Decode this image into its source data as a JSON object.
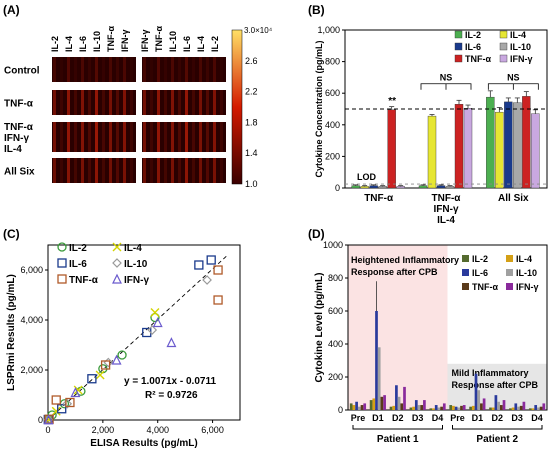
{
  "panels": {
    "A": {
      "label": "(A)"
    },
    "B": {
      "label": "(B)"
    },
    "C": {
      "label": "(C)"
    },
    "D": {
      "label": "(D)"
    }
  },
  "chart_data": [
    {
      "panel": "A",
      "type": "heatmap",
      "columns_left": [
        "IL-2",
        "IL-4",
        "IL-6",
        "IL-10",
        "TNF-α",
        "IFN-γ"
      ],
      "columns_right": [
        "IFN-γ",
        "TNF-α",
        "IL-10",
        "IL-6",
        "IL-4",
        "IL-2"
      ],
      "rows": [
        "Control",
        "TNF-α",
        "TNF-α\nIFN-γ\nIL-4",
        "All Six"
      ],
      "row_lines": [
        [
          "Control"
        ],
        [
          "TNF-α"
        ],
        [
          "TNF-α",
          "IFN-γ",
          "IL-4"
        ],
        [
          "All Six"
        ]
      ],
      "colorbar_max_label": "3.0×10⁴",
      "colorbar_ticks": [
        "2.6",
        "2.2",
        "1.8",
        "1.4",
        "1.0"
      ],
      "colorbar_range": [
        1.0,
        3.0
      ],
      "colors": {
        "low": "#3a0000",
        "mid": "#d41a00",
        "high": "#ffe066"
      }
    },
    {
      "panel": "B",
      "type": "bar",
      "ylabel": "Cytokine Concentration (pg/mL)",
      "ylim": [
        0,
        1000
      ],
      "yticks": [
        "0",
        "200",
        "400",
        "600",
        "800",
        "1,000"
      ],
      "ytick_values": [
        0,
        200,
        400,
        600,
        800,
        1000
      ],
      "groups": [
        "TNF-α",
        "TNF-α\nIFN-γ\nIL-4",
        "All Six"
      ],
      "group_lines": [
        [
          "TNF-α"
        ],
        [
          "TNF-α",
          "IFN-γ",
          "IL-4"
        ],
        [
          "All Six"
        ]
      ],
      "series": [
        {
          "name": "IL-2",
          "color": "#4caf50",
          "values": [
            15,
            15,
            575
          ],
          "errors": [
            5,
            5,
            40
          ]
        },
        {
          "name": "IL-4",
          "color": "#e6e633",
          "values": [
            10,
            455,
            480
          ],
          "errors": [
            5,
            10,
            30
          ]
        },
        {
          "name": "IL-6",
          "color": "#1a3a8c",
          "values": [
            15,
            15,
            545
          ],
          "errors": [
            5,
            5,
            25
          ]
        },
        {
          "name": "IL-10",
          "color": "#a8a8a8",
          "values": [
            10,
            10,
            540
          ],
          "errors": [
            5,
            5,
            30
          ]
        },
        {
          "name": "TNF-α",
          "color": "#cc2222",
          "values": [
            495,
            530,
            580
          ],
          "errors": [
            20,
            25,
            30
          ]
        },
        {
          "name": "IFN-γ",
          "color": "#c9a8e0",
          "values": [
            10,
            505,
            470
          ],
          "errors": [
            5,
            20,
            25
          ]
        }
      ],
      "reference_line": 500,
      "lod_line": 25,
      "annotations": {
        "lod": "LOD",
        "sig": "**",
        "ns1": "NS",
        "ns2": "NS"
      }
    },
    {
      "panel": "C",
      "type": "scatter",
      "xlabel": "ELISA Results (pg/mL)",
      "ylabel": "LSPRmi Results (pg/mL)",
      "xlim": [
        0,
        7000
      ],
      "ylim": [
        0,
        7000
      ],
      "xticks": [
        "0",
        "2,000",
        "4,000",
        "6,000"
      ],
      "xtick_values": [
        0,
        2000,
        4000,
        6000
      ],
      "yticks": [
        "0",
        "2,000",
        "4,000",
        "6,000"
      ],
      "ytick_values": [
        0,
        2000,
        4000,
        6000
      ],
      "equation": "y = 1.0071x - 0.0711",
      "r2": "R² = 0.9726",
      "fit": {
        "slope": 1.0071,
        "intercept": -0.0711
      },
      "series": [
        {
          "name": "IL-2",
          "marker": "circle",
          "color": "#3a9a3a",
          "points": [
            [
              20,
              30
            ],
            [
              150,
              200
            ],
            [
              600,
              650
            ],
            [
              1200,
              1150
            ],
            [
              2000,
              2050
            ],
            [
              2700,
              2600
            ],
            [
              3900,
              4100
            ]
          ]
        },
        {
          "name": "IL-4",
          "marker": "x",
          "color": "#d4d400",
          "points": [
            [
              30,
              20
            ],
            [
              300,
              350
            ],
            [
              1100,
              1200
            ],
            [
              1900,
              1800
            ],
            [
              3900,
              4300
            ]
          ]
        },
        {
          "name": "IL-6",
          "marker": "square",
          "color": "#1a3a8c",
          "points": [
            [
              10,
              20
            ],
            [
              500,
              450
            ],
            [
              1600,
              1650
            ],
            [
              3600,
              3500
            ],
            [
              5500,
              6200
            ],
            [
              5950,
              6400
            ]
          ]
        },
        {
          "name": "IL-10",
          "marker": "diamond",
          "color": "#999999",
          "points": [
            [
              15,
              15
            ],
            [
              700,
              650
            ],
            [
              2200,
              2300
            ],
            [
              3800,
              3600
            ],
            [
              5800,
              5600
            ]
          ]
        },
        {
          "name": "TNF-α",
          "marker": "square",
          "color": "#b05a2a",
          "points": [
            [
              40,
              30
            ],
            [
              300,
              800
            ],
            [
              800,
              700
            ],
            [
              2100,
              2200
            ],
            [
              6200,
              6000
            ],
            [
              6200,
              4800
            ]
          ]
        },
        {
          "name": "IFN-γ",
          "marker": "triangle",
          "color": "#6a5acd",
          "points": [
            [
              20,
              10
            ],
            [
              1000,
              1100
            ],
            [
              2500,
              2400
            ],
            [
              4000,
              3900
            ],
            [
              4500,
              3100
            ]
          ]
        }
      ]
    },
    {
      "panel": "D",
      "type": "bar",
      "ylabel": "Cytokine Level (pg/mL)",
      "ylim": [
        0,
        1000
      ],
      "yticks": [
        "0",
        "200",
        "400",
        "600",
        "800",
        "1000"
      ],
      "ytick_values": [
        0,
        200,
        400,
        600,
        800,
        1000
      ],
      "categories": [
        "Pre",
        "D1",
        "D2",
        "D3",
        "D4",
        "Pre",
        "D1",
        "D2",
        "D3",
        "D4"
      ],
      "patients": [
        "Patient 1",
        "Patient 2"
      ],
      "region_labels": [
        [
          "Heightened Inflammatory",
          "Response after CPB"
        ],
        [
          "Mild Inflammatory",
          "Response after CPB"
        ]
      ],
      "series": [
        {
          "name": "IL-2",
          "color": "#556b2f",
          "values": [
            40,
            60,
            20,
            15,
            10,
            30,
            20,
            15,
            10,
            10
          ]
        },
        {
          "name": "IL-4",
          "color": "#d4a017",
          "values": [
            30,
            70,
            25,
            20,
            10,
            25,
            25,
            15,
            15,
            10
          ]
        },
        {
          "name": "IL-6",
          "color": "#2a3a9c",
          "values": [
            50,
            600,
            150,
            60,
            30,
            20,
            220,
            90,
            40,
            30
          ]
        },
        {
          "name": "IL-10",
          "color": "#a0a0a0",
          "values": [
            20,
            380,
            80,
            30,
            15,
            15,
            120,
            50,
            20,
            15
          ]
        },
        {
          "name": "TNF-α",
          "color": "#5a3a1a",
          "values": [
            30,
            80,
            40,
            30,
            20,
            25,
            40,
            30,
            25,
            20
          ]
        },
        {
          "name": "IFN-γ",
          "color": "#8a2a9c",
          "values": [
            40,
            90,
            140,
            60,
            40,
            30,
            70,
            60,
            50,
            40
          ]
        }
      ],
      "errors_d1_il6": 180,
      "colors": {
        "region1": "#fbe3e3",
        "region2": "#e6e6e6"
      }
    }
  ]
}
